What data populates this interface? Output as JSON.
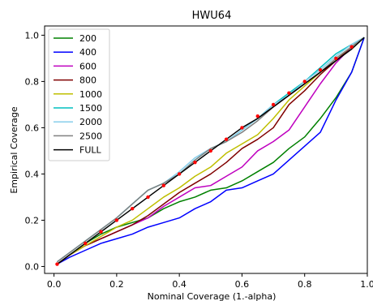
{
  "chart_data": {
    "type": "line",
    "title": "HWU64",
    "xlabel": "Nominal Coverage (1.-alpha)",
    "ylabel": "Empirical Coverage",
    "xlim": [
      -0.03,
      1.0
    ],
    "ylim": [
      -0.03,
      1.04
    ],
    "xticks": [
      "0.0",
      "0.2",
      "0.4",
      "0.6",
      "0.8",
      "1.0"
    ],
    "yticks": [
      "0.0",
      "0.2",
      "0.4",
      "0.6",
      "0.8",
      "1.0"
    ],
    "x": [
      0.01,
      0.05,
      0.1,
      0.15,
      0.2,
      0.25,
      0.3,
      0.35,
      0.4,
      0.45,
      0.5,
      0.55,
      0.6,
      0.65,
      0.7,
      0.75,
      0.8,
      0.85,
      0.9,
      0.95,
      0.99
    ],
    "legend_position": "top-left",
    "grid": false,
    "series": [
      {
        "name": "200",
        "color": "#008000",
        "values": [
          0.01,
          0.05,
          0.1,
          0.14,
          0.17,
          0.19,
          0.21,
          0.25,
          0.28,
          0.3,
          0.33,
          0.34,
          0.37,
          0.41,
          0.45,
          0.51,
          0.56,
          0.64,
          0.73,
          0.84,
          0.99
        ]
      },
      {
        "name": "400",
        "color": "#0000ff",
        "values": [
          0.01,
          0.04,
          0.07,
          0.1,
          0.12,
          0.14,
          0.17,
          0.19,
          0.21,
          0.25,
          0.28,
          0.33,
          0.34,
          0.37,
          0.4,
          0.46,
          0.52,
          0.58,
          0.72,
          0.84,
          0.99
        ]
      },
      {
        "name": "600",
        "color": "#bf00bf",
        "values": [
          0.01,
          0.05,
          0.09,
          0.12,
          0.15,
          0.18,
          0.21,
          0.26,
          0.3,
          0.34,
          0.35,
          0.39,
          0.43,
          0.5,
          0.54,
          0.59,
          0.69,
          0.79,
          0.88,
          0.95,
          0.99
        ]
      },
      {
        "name": "800",
        "color": "#800000",
        "values": [
          0.01,
          0.05,
          0.09,
          0.12,
          0.15,
          0.18,
          0.22,
          0.27,
          0.32,
          0.36,
          0.4,
          0.45,
          0.51,
          0.55,
          0.6,
          0.7,
          0.76,
          0.83,
          0.89,
          0.95,
          0.99
        ]
      },
      {
        "name": "1000",
        "color": "#bfbf00",
        "values": [
          0.01,
          0.05,
          0.09,
          0.13,
          0.17,
          0.2,
          0.25,
          0.3,
          0.34,
          0.39,
          0.43,
          0.49,
          0.53,
          0.57,
          0.64,
          0.72,
          0.78,
          0.84,
          0.9,
          0.95,
          0.99
        ]
      },
      {
        "name": "1500",
        "color": "#00bfbf",
        "values": [
          0.02,
          0.06,
          0.11,
          0.16,
          0.21,
          0.27,
          0.33,
          0.36,
          0.4,
          0.46,
          0.51,
          0.54,
          0.59,
          0.64,
          0.7,
          0.75,
          0.8,
          0.86,
          0.92,
          0.96,
          0.99
        ]
      },
      {
        "name": "2000",
        "color": "#87ceeb",
        "values": [
          0.02,
          0.06,
          0.11,
          0.16,
          0.21,
          0.27,
          0.33,
          0.36,
          0.41,
          0.47,
          0.51,
          0.54,
          0.59,
          0.64,
          0.7,
          0.74,
          0.8,
          0.85,
          0.91,
          0.96,
          0.99
        ]
      },
      {
        "name": "2500",
        "color": "#808080",
        "values": [
          0.02,
          0.06,
          0.11,
          0.16,
          0.21,
          0.27,
          0.33,
          0.36,
          0.4,
          0.46,
          0.51,
          0.54,
          0.58,
          0.63,
          0.69,
          0.74,
          0.79,
          0.84,
          0.9,
          0.95,
          0.99
        ]
      },
      {
        "name": "FULL",
        "color": "#000000",
        "values": [
          0.01,
          0.05,
          0.1,
          0.15,
          0.2,
          0.25,
          0.3,
          0.35,
          0.4,
          0.45,
          0.5,
          0.55,
          0.6,
          0.64,
          0.69,
          0.74,
          0.79,
          0.84,
          0.89,
          0.94,
          0.99
        ]
      }
    ],
    "reference_points": {
      "color": "#ff0000",
      "x": [
        0.01,
        0.1,
        0.15,
        0.2,
        0.25,
        0.3,
        0.35,
        0.4,
        0.45,
        0.5,
        0.55,
        0.6,
        0.65,
        0.7,
        0.75,
        0.8,
        0.85,
        0.9,
        0.95
      ],
      "y": [
        0.01,
        0.1,
        0.15,
        0.2,
        0.25,
        0.3,
        0.35,
        0.4,
        0.45,
        0.5,
        0.55,
        0.6,
        0.65,
        0.7,
        0.75,
        0.8,
        0.85,
        0.9,
        0.95
      ]
    }
  }
}
